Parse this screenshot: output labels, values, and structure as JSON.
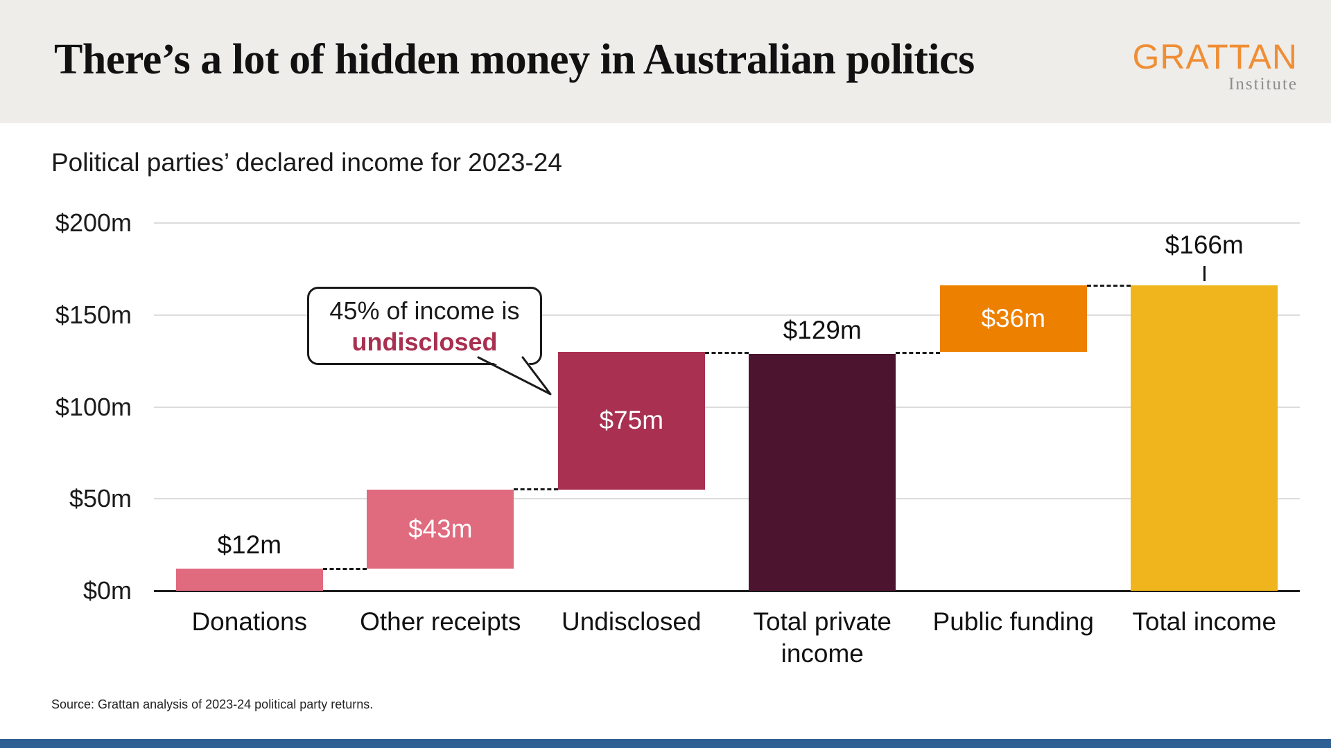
{
  "header": {
    "title": "There’s a lot of hidden money in Australian politics",
    "logo_text": "GRATTAN",
    "logo_subtext": "Institute"
  },
  "subtitle": "Political parties’ declared income for 2023-24",
  "annotation": {
    "line1": "45% of income is",
    "line2": "undisclosed"
  },
  "source": "Source: Grattan analysis of 2023-24 political party returns.",
  "colors": {
    "logo_orange": "#EF8E35",
    "annotation_accent": "#A93050",
    "footer_strip": "#2F6093",
    "grid": "#DCDCDC",
    "axis": "#1A1A1A"
  },
  "chart_data": {
    "type": "bar",
    "subtype": "waterfall",
    "title": "Political parties’ declared income for 2023-24",
    "categories": [
      "Donations",
      "Other receipts",
      "Undisclosed",
      "Total private income",
      "Public funding",
      "Total income"
    ],
    "values": [
      12,
      43,
      75,
      129,
      36,
      166
    ],
    "starts": [
      0,
      12,
      55,
      0,
      130,
      0
    ],
    "kinds": [
      "increment",
      "increment",
      "increment",
      "total",
      "increment",
      "total"
    ],
    "labels": [
      "$12m",
      "$43m",
      "$75m",
      "$129m",
      "$36m",
      "$166m"
    ],
    "label_placement": [
      "above",
      "inside",
      "inside",
      "above",
      "inside",
      "above"
    ],
    "label_tick": [
      false,
      false,
      false,
      false,
      false,
      true
    ],
    "bar_colors": [
      "#E06A7E",
      "#E06A7E",
      "#A93050",
      "#4C142E",
      "#EE8000",
      "#F0B41C"
    ],
    "y_ticks": [
      {
        "value": 0,
        "label": "$0m"
      },
      {
        "value": 50,
        "label": "$50m"
      },
      {
        "value": 100,
        "label": "$100m"
      },
      {
        "value": 150,
        "label": "$150m"
      },
      {
        "value": 200,
        "label": "$200m"
      }
    ],
    "ylim": [
      0,
      200
    ],
    "grid": true,
    "legend": "none",
    "connector_style": "dashed"
  }
}
